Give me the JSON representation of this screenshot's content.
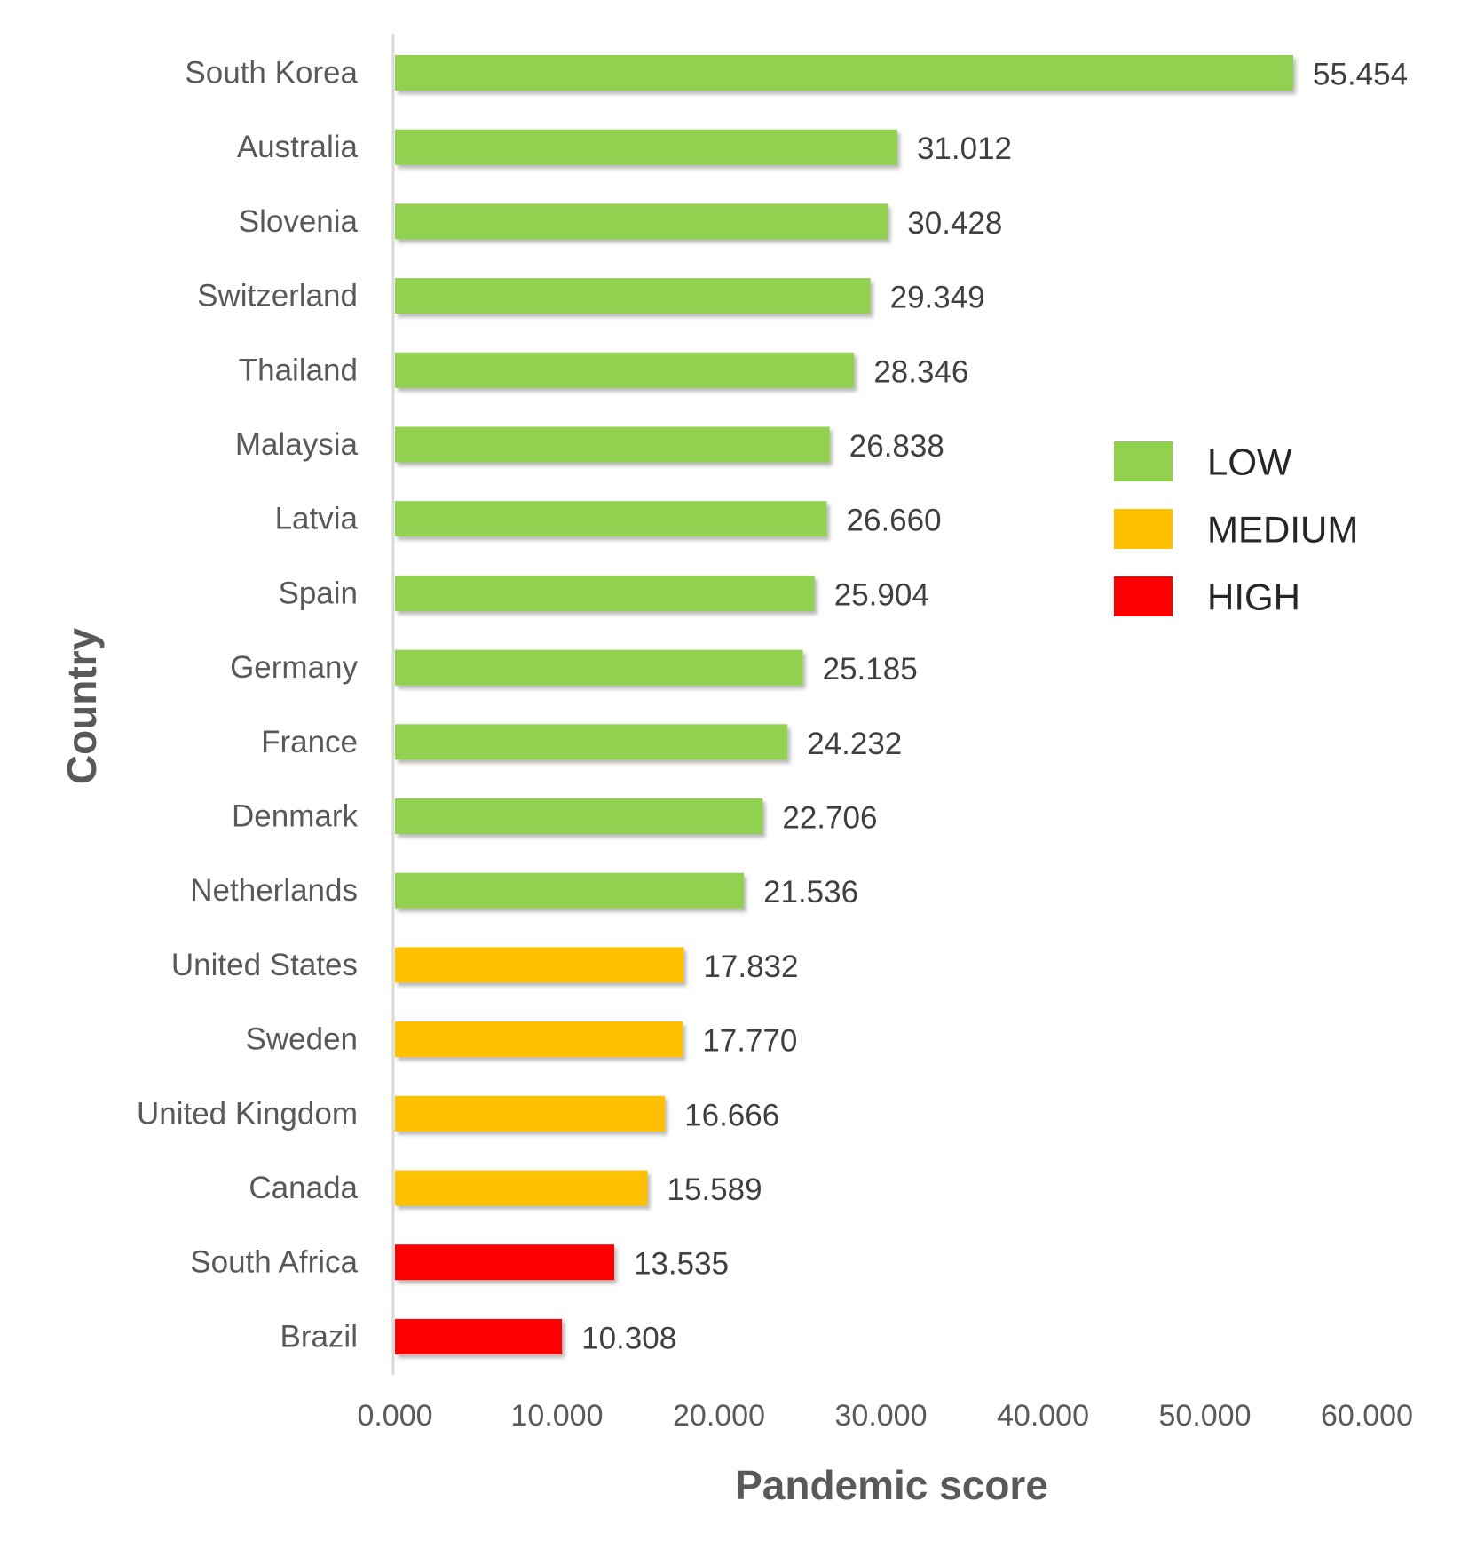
{
  "chart_data": {
    "type": "bar",
    "orientation": "horizontal",
    "xlabel": "Pandemic score",
    "ylabel": "Country",
    "xlim": [
      0,
      60
    ],
    "xticks": [
      "0.000",
      "10.000",
      "20.000",
      "30.000",
      "40.000",
      "50.000",
      "60.000"
    ],
    "grid": false,
    "legend_position": "right",
    "legend": [
      {
        "label": "LOW",
        "color": "#92d050"
      },
      {
        "label": "MEDIUM",
        "color": "#ffc000"
      },
      {
        "label": "HIGH",
        "color": "#ff0000"
      }
    ],
    "categories": [
      "South Korea",
      "Australia",
      "Slovenia",
      "Switzerland",
      "Thailand",
      "Malaysia",
      "Latvia",
      "Spain",
      "Germany",
      "France",
      "Denmark",
      "Netherlands",
      "United States",
      "Sweden",
      "United Kingdom",
      "Canada",
      "South Africa",
      "Brazil"
    ],
    "values": [
      55.454,
      31.012,
      30.428,
      29.349,
      28.346,
      26.838,
      26.66,
      25.904,
      25.185,
      24.232,
      22.706,
      21.536,
      17.832,
      17.77,
      16.666,
      15.589,
      13.535,
      10.308
    ],
    "value_labels": [
      "55.454",
      "31.012",
      "30.428",
      "29.349",
      "28.346",
      "26.838",
      "26.660",
      "25.904",
      "25.185",
      "24.232",
      "22.706",
      "21.536",
      "17.832",
      "17.770",
      "16.666",
      "15.589",
      "13.535",
      "10.308"
    ],
    "risk_levels": [
      "LOW",
      "LOW",
      "LOW",
      "LOW",
      "LOW",
      "LOW",
      "LOW",
      "LOW",
      "LOW",
      "LOW",
      "LOW",
      "LOW",
      "MEDIUM",
      "MEDIUM",
      "MEDIUM",
      "MEDIUM",
      "HIGH",
      "HIGH"
    ]
  }
}
